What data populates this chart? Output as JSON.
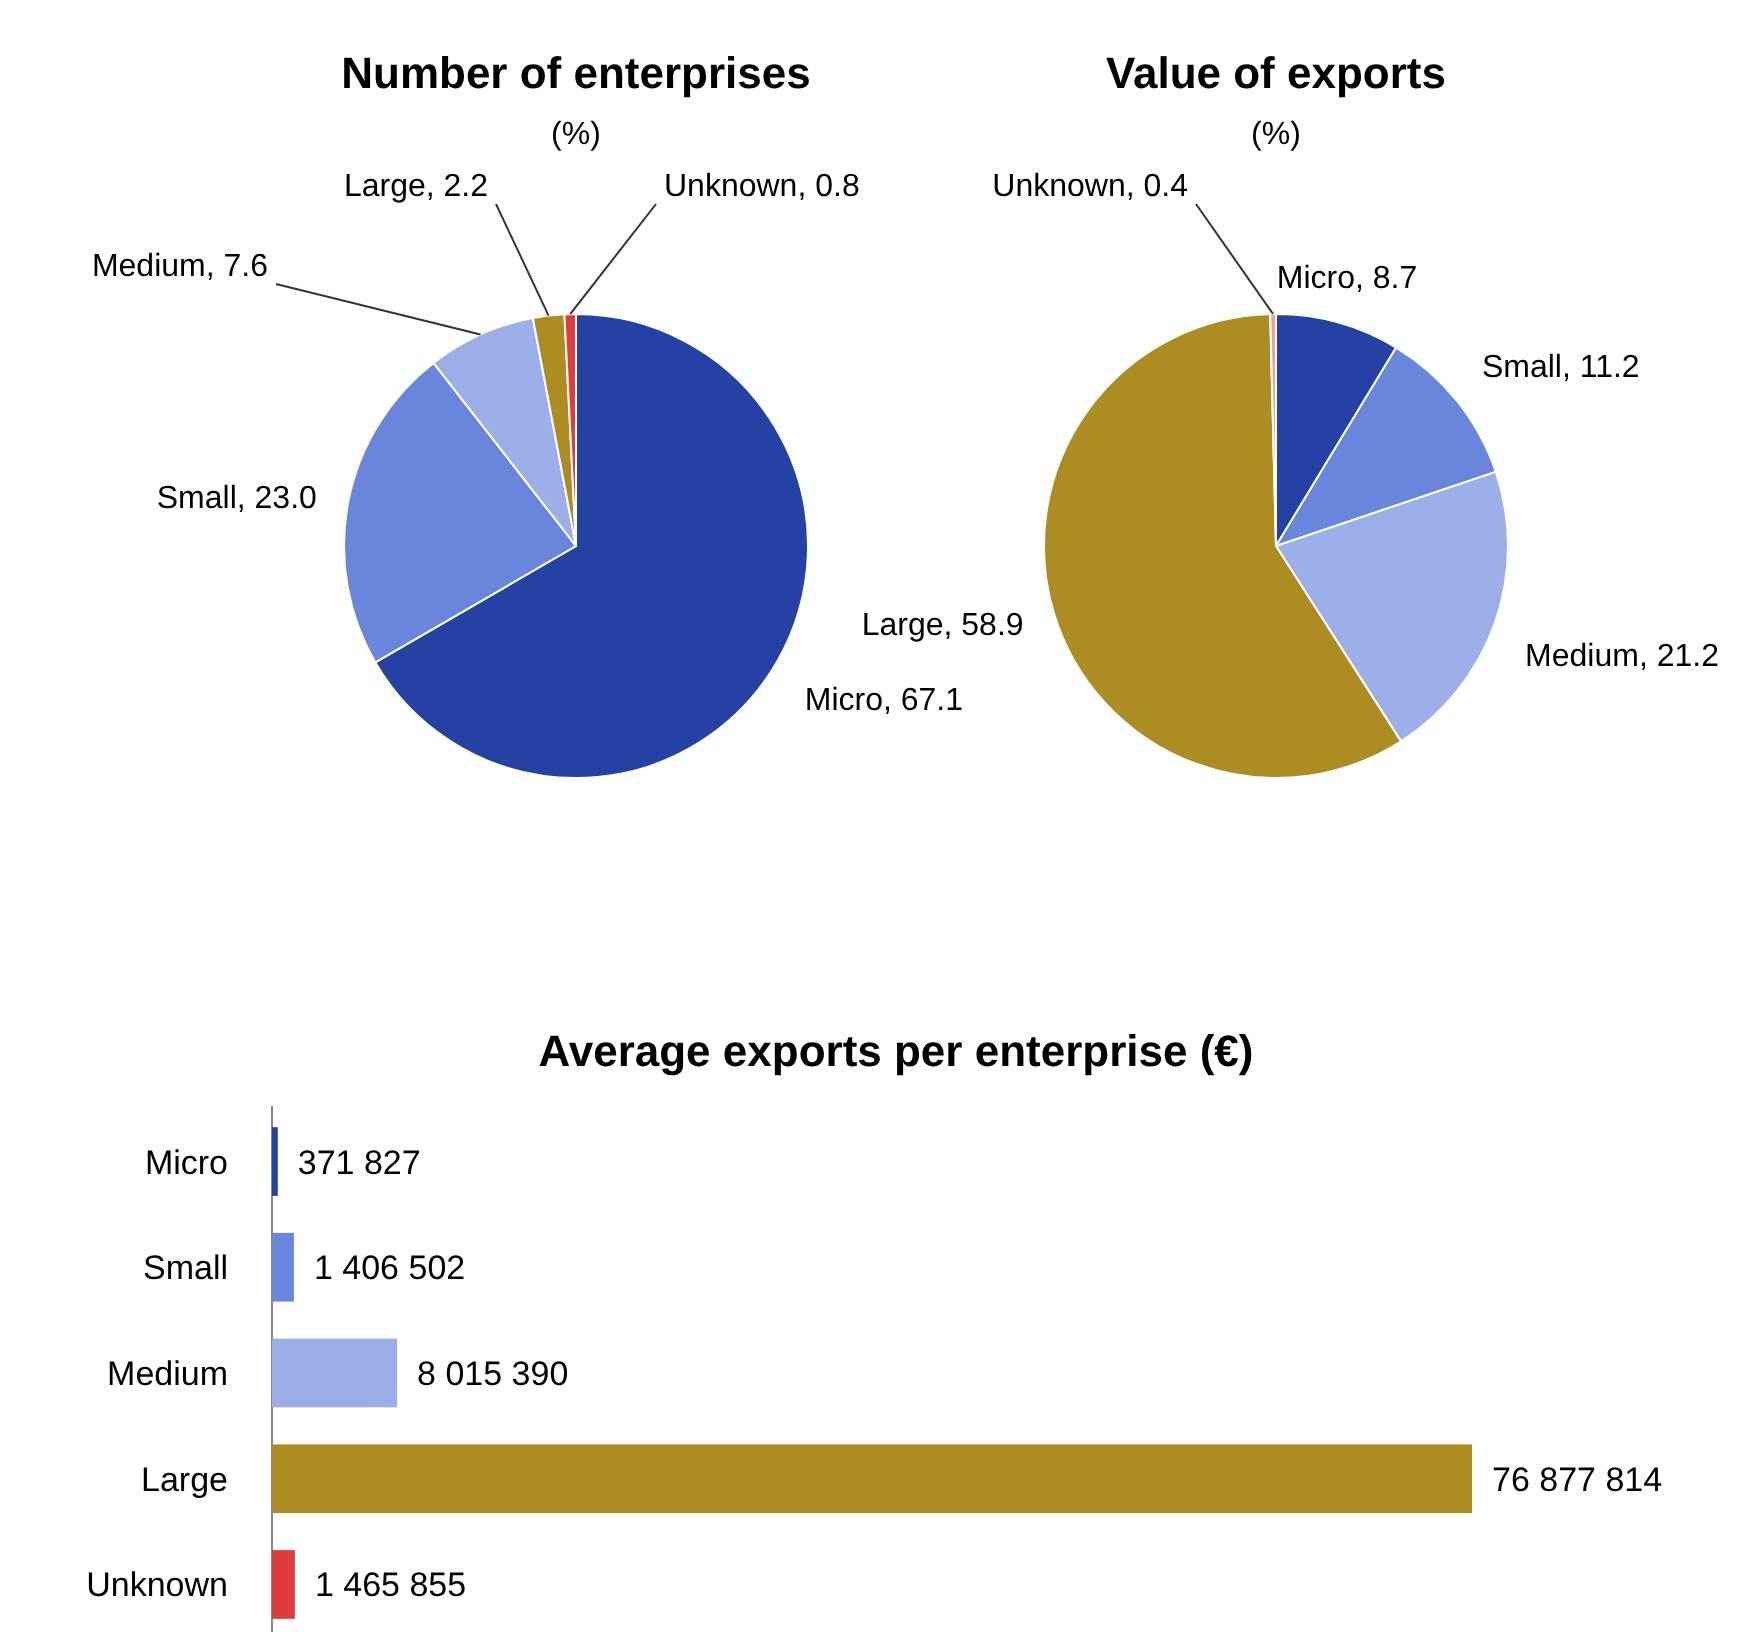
{
  "chart_data": [
    {
      "type": "pie",
      "title": "Number of enterprises",
      "subtitle": "(%)",
      "categories": [
        "Micro",
        "Small",
        "Medium",
        "Large",
        "Unknown"
      ],
      "values": [
        67.1,
        23.0,
        7.6,
        2.2,
        0.8
      ],
      "value_labels": [
        "67.1",
        "23.0",
        "7.6",
        "2.2",
        "0.8"
      ],
      "colors": [
        "#2541a4",
        "#6a86dc",
        "#9dafe8",
        "#ad8d22",
        "#e03c3c"
      ]
    },
    {
      "type": "pie",
      "title": "Value of exports",
      "subtitle": "(%)",
      "categories": [
        "Micro",
        "Small",
        "Medium",
        "Large",
        "Unknown"
      ],
      "values": [
        8.7,
        11.2,
        21.2,
        58.9,
        0.4
      ],
      "value_labels": [
        "8.7",
        "11.2",
        "21.2",
        "58.9",
        "0.4"
      ],
      "colors": [
        "#2541a4",
        "#6a86dc",
        "#9dafe8",
        "#ad8d22",
        "#e8a0a0"
      ]
    },
    {
      "type": "bar",
      "orientation": "horizontal",
      "title": "Average exports per enterprise (€)",
      "categories": [
        "Micro",
        "Small",
        "Medium",
        "Large",
        "Unknown"
      ],
      "values": [
        371827,
        1406502,
        8015390,
        76877814,
        1465855
      ],
      "value_labels": [
        "371 827",
        "1 406 502",
        "8 015 390",
        "76 877 814",
        "1 465 855"
      ],
      "colors": [
        "#2541a4",
        "#6a86dc",
        "#9dafe8",
        "#ad8d22",
        "#e03c3c"
      ]
    }
  ]
}
